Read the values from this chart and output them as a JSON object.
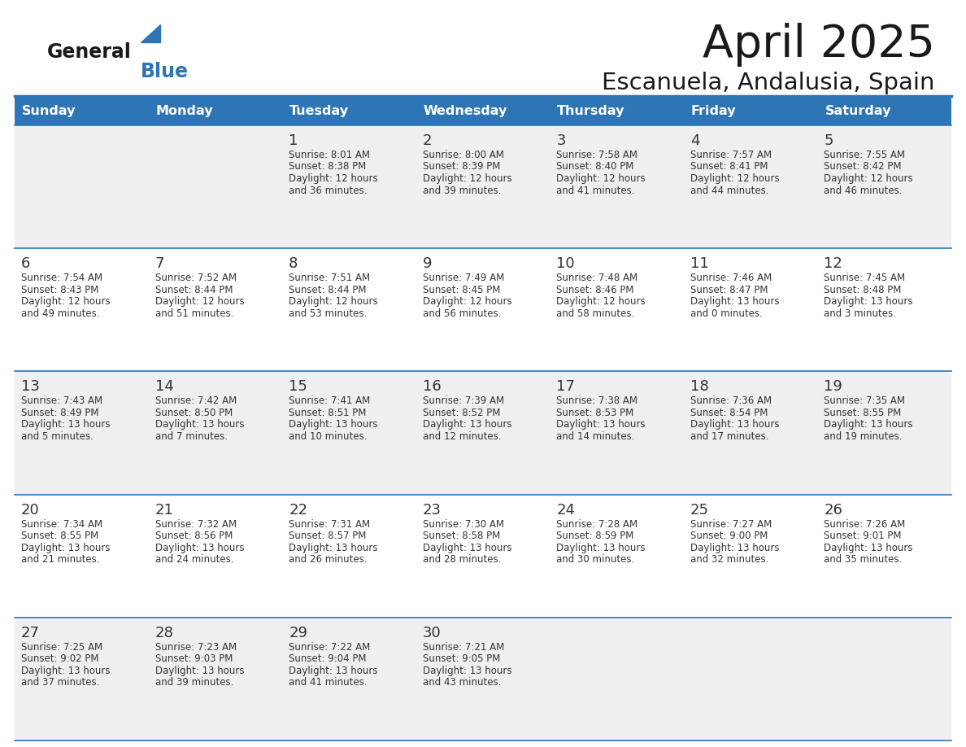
{
  "title": "April 2025",
  "subtitle": "Escanuela, Andalusia, Spain",
  "header_bg": "#2E75B6",
  "header_text_color": "#FFFFFF",
  "cell_bg_odd": "#EFEFEF",
  "cell_bg_even": "#FFFFFF",
  "day_number_color": "#333333",
  "text_color": "#333333",
  "line_color": "#2E75B6",
  "logo_general_color": "#1a1a1a",
  "logo_blue_color": "#2E75B6",
  "logo_triangle_color": "#2E75B6",
  "days_of_week": [
    "Sunday",
    "Monday",
    "Tuesday",
    "Wednesday",
    "Thursday",
    "Friday",
    "Saturday"
  ],
  "weeks": [
    [
      {
        "day": "",
        "lines": []
      },
      {
        "day": "",
        "lines": []
      },
      {
        "day": "1",
        "lines": [
          "Sunrise: 8:01 AM",
          "Sunset: 8:38 PM",
          "Daylight: 12 hours",
          "and 36 minutes."
        ]
      },
      {
        "day": "2",
        "lines": [
          "Sunrise: 8:00 AM",
          "Sunset: 8:39 PM",
          "Daylight: 12 hours",
          "and 39 minutes."
        ]
      },
      {
        "day": "3",
        "lines": [
          "Sunrise: 7:58 AM",
          "Sunset: 8:40 PM",
          "Daylight: 12 hours",
          "and 41 minutes."
        ]
      },
      {
        "day": "4",
        "lines": [
          "Sunrise: 7:57 AM",
          "Sunset: 8:41 PM",
          "Daylight: 12 hours",
          "and 44 minutes."
        ]
      },
      {
        "day": "5",
        "lines": [
          "Sunrise: 7:55 AM",
          "Sunset: 8:42 PM",
          "Daylight: 12 hours",
          "and 46 minutes."
        ]
      }
    ],
    [
      {
        "day": "6",
        "lines": [
          "Sunrise: 7:54 AM",
          "Sunset: 8:43 PM",
          "Daylight: 12 hours",
          "and 49 minutes."
        ]
      },
      {
        "day": "7",
        "lines": [
          "Sunrise: 7:52 AM",
          "Sunset: 8:44 PM",
          "Daylight: 12 hours",
          "and 51 minutes."
        ]
      },
      {
        "day": "8",
        "lines": [
          "Sunrise: 7:51 AM",
          "Sunset: 8:44 PM",
          "Daylight: 12 hours",
          "and 53 minutes."
        ]
      },
      {
        "day": "9",
        "lines": [
          "Sunrise: 7:49 AM",
          "Sunset: 8:45 PM",
          "Daylight: 12 hours",
          "and 56 minutes."
        ]
      },
      {
        "day": "10",
        "lines": [
          "Sunrise: 7:48 AM",
          "Sunset: 8:46 PM",
          "Daylight: 12 hours",
          "and 58 minutes."
        ]
      },
      {
        "day": "11",
        "lines": [
          "Sunrise: 7:46 AM",
          "Sunset: 8:47 PM",
          "Daylight: 13 hours",
          "and 0 minutes."
        ]
      },
      {
        "day": "12",
        "lines": [
          "Sunrise: 7:45 AM",
          "Sunset: 8:48 PM",
          "Daylight: 13 hours",
          "and 3 minutes."
        ]
      }
    ],
    [
      {
        "day": "13",
        "lines": [
          "Sunrise: 7:43 AM",
          "Sunset: 8:49 PM",
          "Daylight: 13 hours",
          "and 5 minutes."
        ]
      },
      {
        "day": "14",
        "lines": [
          "Sunrise: 7:42 AM",
          "Sunset: 8:50 PM",
          "Daylight: 13 hours",
          "and 7 minutes."
        ]
      },
      {
        "day": "15",
        "lines": [
          "Sunrise: 7:41 AM",
          "Sunset: 8:51 PM",
          "Daylight: 13 hours",
          "and 10 minutes."
        ]
      },
      {
        "day": "16",
        "lines": [
          "Sunrise: 7:39 AM",
          "Sunset: 8:52 PM",
          "Daylight: 13 hours",
          "and 12 minutes."
        ]
      },
      {
        "day": "17",
        "lines": [
          "Sunrise: 7:38 AM",
          "Sunset: 8:53 PM",
          "Daylight: 13 hours",
          "and 14 minutes."
        ]
      },
      {
        "day": "18",
        "lines": [
          "Sunrise: 7:36 AM",
          "Sunset: 8:54 PM",
          "Daylight: 13 hours",
          "and 17 minutes."
        ]
      },
      {
        "day": "19",
        "lines": [
          "Sunrise: 7:35 AM",
          "Sunset: 8:55 PM",
          "Daylight: 13 hours",
          "and 19 minutes."
        ]
      }
    ],
    [
      {
        "day": "20",
        "lines": [
          "Sunrise: 7:34 AM",
          "Sunset: 8:55 PM",
          "Daylight: 13 hours",
          "and 21 minutes."
        ]
      },
      {
        "day": "21",
        "lines": [
          "Sunrise: 7:32 AM",
          "Sunset: 8:56 PM",
          "Daylight: 13 hours",
          "and 24 minutes."
        ]
      },
      {
        "day": "22",
        "lines": [
          "Sunrise: 7:31 AM",
          "Sunset: 8:57 PM",
          "Daylight: 13 hours",
          "and 26 minutes."
        ]
      },
      {
        "day": "23",
        "lines": [
          "Sunrise: 7:30 AM",
          "Sunset: 8:58 PM",
          "Daylight: 13 hours",
          "and 28 minutes."
        ]
      },
      {
        "day": "24",
        "lines": [
          "Sunrise: 7:28 AM",
          "Sunset: 8:59 PM",
          "Daylight: 13 hours",
          "and 30 minutes."
        ]
      },
      {
        "day": "25",
        "lines": [
          "Sunrise: 7:27 AM",
          "Sunset: 9:00 PM",
          "Daylight: 13 hours",
          "and 32 minutes."
        ]
      },
      {
        "day": "26",
        "lines": [
          "Sunrise: 7:26 AM",
          "Sunset: 9:01 PM",
          "Daylight: 13 hours",
          "and 35 minutes."
        ]
      }
    ],
    [
      {
        "day": "27",
        "lines": [
          "Sunrise: 7:25 AM",
          "Sunset: 9:02 PM",
          "Daylight: 13 hours",
          "and 37 minutes."
        ]
      },
      {
        "day": "28",
        "lines": [
          "Sunrise: 7:23 AM",
          "Sunset: 9:03 PM",
          "Daylight: 13 hours",
          "and 39 minutes."
        ]
      },
      {
        "day": "29",
        "lines": [
          "Sunrise: 7:22 AM",
          "Sunset: 9:04 PM",
          "Daylight: 13 hours",
          "and 41 minutes."
        ]
      },
      {
        "day": "30",
        "lines": [
          "Sunrise: 7:21 AM",
          "Sunset: 9:05 PM",
          "Daylight: 13 hours",
          "and 43 minutes."
        ]
      },
      {
        "day": "",
        "lines": []
      },
      {
        "day": "",
        "lines": []
      },
      {
        "day": "",
        "lines": []
      }
    ]
  ],
  "fig_width": 11.88,
  "fig_height": 9.18,
  "dpi": 100
}
